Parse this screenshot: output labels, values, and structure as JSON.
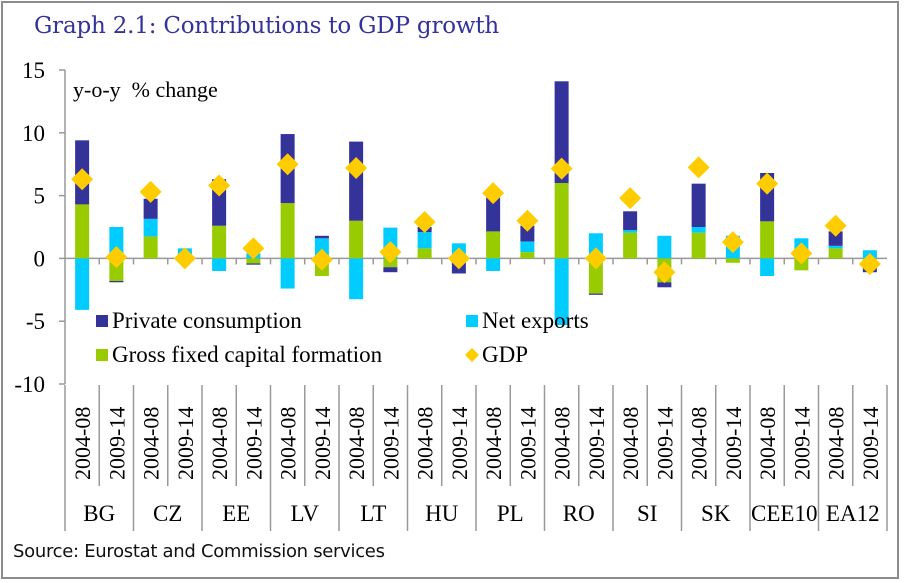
{
  "chart_data": {
    "type": "bar",
    "stacked": true,
    "title": "Graph 2.1: Contributions to GDP growth",
    "ylabel": "y-o-y  % change",
    "xlabel": "",
    "ylim": [
      -10,
      15
    ],
    "yticks": [
      15,
      10,
      5,
      0,
      -5,
      -10
    ],
    "grid": false,
    "legend_position": "bottom-left inside plot",
    "groups": [
      "BG",
      "CZ",
      "EE",
      "LV",
      "LT",
      "HU",
      "PL",
      "RO",
      "SI",
      "SK",
      "CEE10",
      "EA12"
    ],
    "periods": [
      "2004-08",
      "2009-14"
    ],
    "categories": [
      "BG 2004-08",
      "BG 2009-14",
      "CZ 2004-08",
      "CZ 2009-14",
      "EE 2004-08",
      "EE 2009-14",
      "LV 2004-08",
      "LV 2009-14",
      "LT 2004-08",
      "LT 2009-14",
      "HU 2004-08",
      "HU 2009-14",
      "PL 2004-08",
      "PL 2009-14",
      "RO 2004-08",
      "RO 2009-14",
      "SI 2004-08",
      "SI 2009-14",
      "SK 2004-08",
      "SK 2009-14",
      "CEE10 2004-08",
      "CEE10 2009-14",
      "EA12 2004-08",
      "EA12 2009-14"
    ],
    "series": [
      {
        "name": "Gross fixed capital formation",
        "kind": "bar",
        "color": "#99CC00",
        "values": [
          4.3,
          -1.8,
          1.75,
          -0.2,
          2.6,
          -0.4,
          4.4,
          -1.4,
          3.0,
          -0.7,
          0.8,
          -0.2,
          2.15,
          0.5,
          6.0,
          -2.8,
          2.05,
          -1.9,
          2.05,
          -0.35,
          2.95,
          -0.95,
          0.8,
          -0.2
        ]
      },
      {
        "name": "Net exports",
        "kind": "bar",
        "color": "#00CCFF",
        "values": [
          -4.1,
          2.5,
          1.4,
          0.8,
          -1.0,
          0.4,
          -2.4,
          1.6,
          -3.25,
          2.45,
          1.3,
          1.2,
          -1.0,
          0.85,
          -5.3,
          2.0,
          0.2,
          1.8,
          0.45,
          1.8,
          -1.4,
          1.6,
          0.2,
          0.65
        ]
      },
      {
        "name": "Private consumption",
        "kind": "bar",
        "color": "#333399",
        "values": [
          5.1,
          -0.1,
          1.6,
          0.0,
          3.7,
          -0.1,
          5.5,
          0.2,
          6.3,
          -0.4,
          0.4,
          -1.0,
          2.7,
          1.25,
          8.1,
          -0.1,
          1.5,
          -0.4,
          3.45,
          0.0,
          3.85,
          0.0,
          1.15,
          -0.9
        ]
      },
      {
        "name": "GDP",
        "kind": "marker",
        "marker": "diamond",
        "color": "#FFCC00",
        "values": [
          6.3,
          0.1,
          5.3,
          0.0,
          5.8,
          0.8,
          7.5,
          -0.1,
          7.2,
          0.5,
          2.9,
          0.0,
          5.2,
          3.0,
          7.15,
          0.0,
          4.8,
          -1.1,
          7.25,
          1.3,
          5.95,
          0.4,
          2.6,
          -0.45
        ]
      }
    ],
    "legend": [
      {
        "label": "Private consumption",
        "color": "#333399",
        "shape": "square"
      },
      {
        "label": "Net exports",
        "color": "#00CCFF",
        "shape": "square"
      },
      {
        "label": "Gross fixed capital formation",
        "color": "#99CC00",
        "shape": "square"
      },
      {
        "label": "GDP",
        "color": "#FFCC00",
        "shape": "diamond"
      }
    ],
    "source": "Source: Eurostat and Commission services"
  }
}
